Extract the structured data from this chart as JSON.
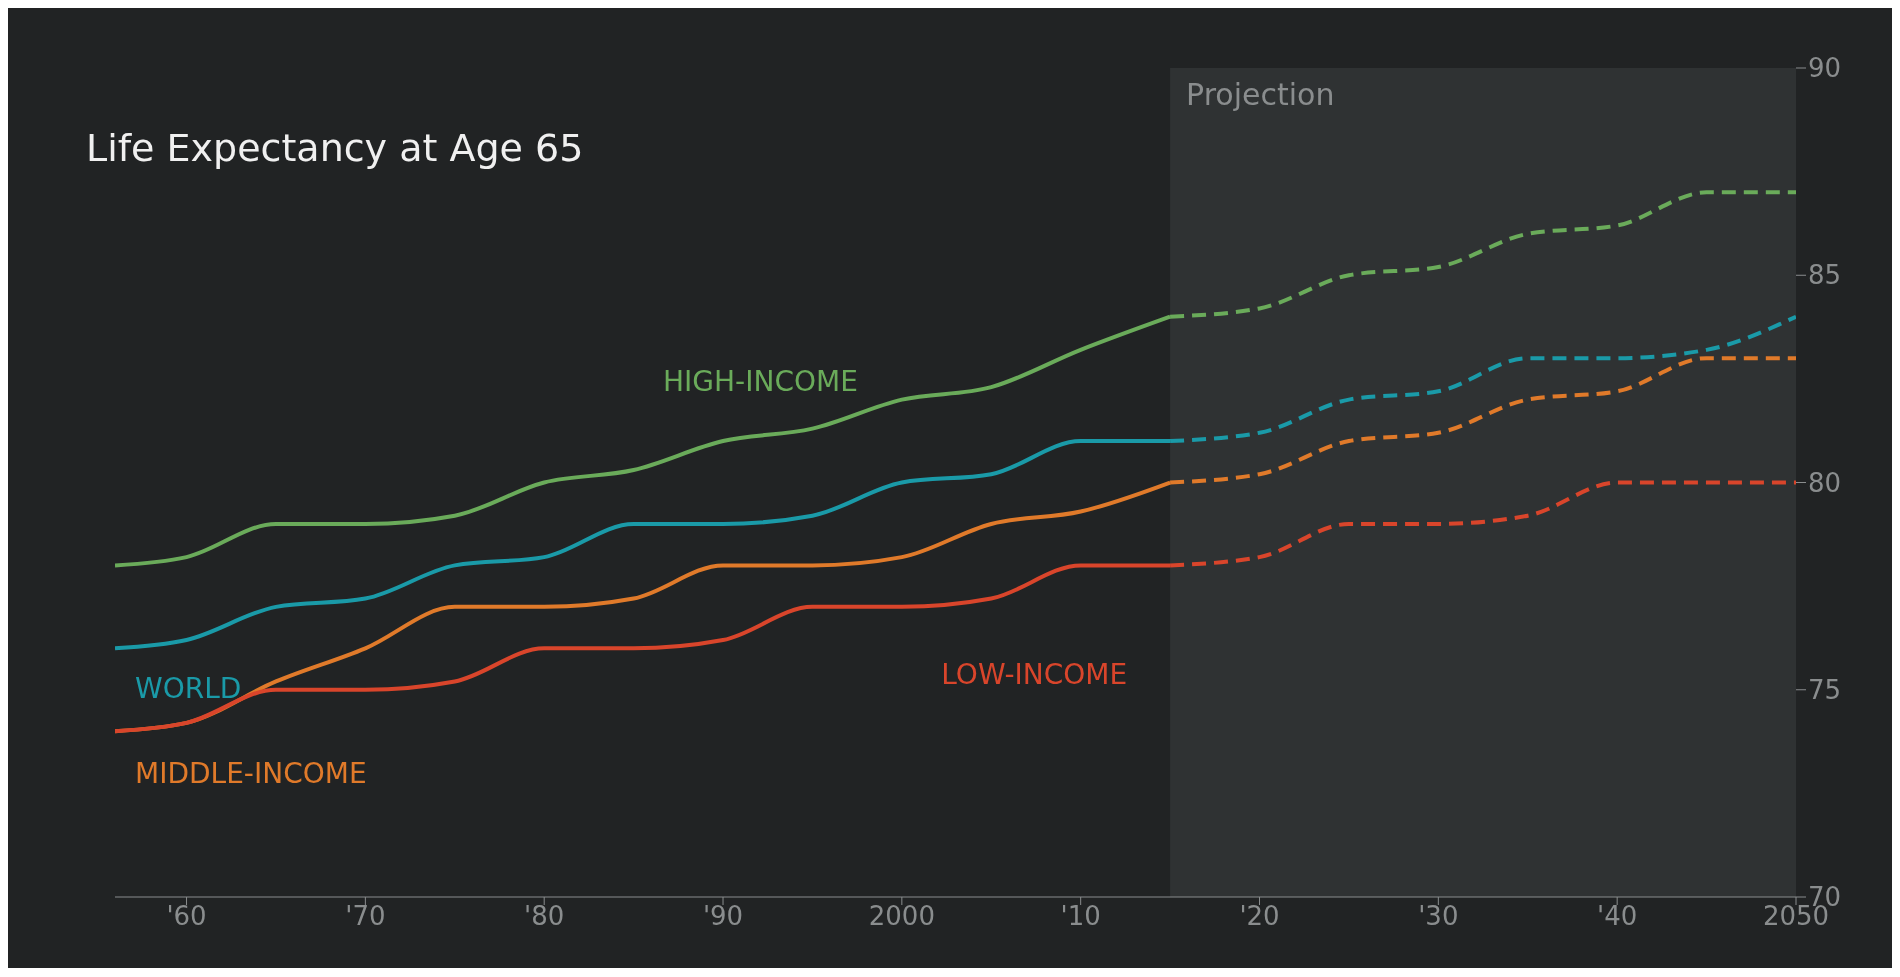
{
  "chart_data": {
    "type": "line",
    "title": "Life Expectancy at Age 65",
    "xlim": [
      1956,
      2050
    ],
    "xticks": [
      {
        "value": 1960,
        "label": "'60"
      },
      {
        "value": 1970,
        "label": "'70"
      },
      {
        "value": 1980,
        "label": "'80"
      },
      {
        "value": 1990,
        "label": "'90"
      },
      2000,
      {
        "value": 2010,
        "label": "'10"
      },
      {
        "value": 2020,
        "label": "'20"
      },
      {
        "value": 2030,
        "label": "'30"
      },
      {
        "value": 2040,
        "label": "'40"
      },
      2050
    ],
    "ylim": [
      70,
      90
    ],
    "yticks": [
      70,
      75,
      80,
      85,
      90
    ],
    "grid": false,
    "legend": false,
    "marker": "none",
    "bands": [
      {
        "axis": "x",
        "from": 2015,
        "to": 2050,
        "label": "Projection",
        "color": "#2f3233"
      }
    ],
    "series": [
      {
        "name": "HIGH-INCOME",
        "color": "#6aab5a",
        "line_style": "solid",
        "x": [
          1956,
          1960,
          1965,
          1970,
          1975,
          1980,
          1985,
          1990,
          1995,
          2000,
          2005,
          2010,
          2015
        ],
        "values": [
          78,
          78.2,
          79,
          79,
          79.2,
          80,
          80.3,
          81,
          81.3,
          82,
          82.3,
          83.2,
          84
        ]
      },
      {
        "color": "#6aab5a",
        "line_style": "dashed",
        "x": [
          2015,
          2020,
          2025,
          2030,
          2035,
          2040,
          2045,
          2050
        ],
        "values": [
          84,
          84.2,
          85,
          85.2,
          86,
          86.2,
          87,
          87
        ]
      },
      {
        "name": "WORLD",
        "color": "#1a9aa8",
        "line_style": "solid",
        "x": [
          1956,
          1960,
          1965,
          1970,
          1975,
          1980,
          1985,
          1990,
          1995,
          2000,
          2005,
          2010,
          2015
        ],
        "values": [
          76,
          76.2,
          77,
          77.2,
          78,
          78.2,
          79,
          79,
          79.2,
          80,
          80.2,
          81,
          81
        ]
      },
      {
        "color": "#1a9aa8",
        "line_style": "dashed",
        "x": [
          2015,
          2020,
          2025,
          2030,
          2035,
          2040,
          2045,
          2050
        ],
        "values": [
          81,
          81.2,
          82,
          82.2,
          83,
          83,
          83.2,
          84
        ]
      },
      {
        "name": "MIDDLE-INCOME",
        "color": "#e07a2a",
        "line_style": "solid",
        "x": [
          1956,
          1960,
          1965,
          1970,
          1975,
          1980,
          1985,
          1990,
          1995,
          2000,
          2005,
          2010,
          2015
        ],
        "values": [
          74,
          74.2,
          75.2,
          76,
          77,
          77,
          77.2,
          78,
          78,
          78.2,
          79,
          79.3,
          80
        ]
      },
      {
        "color": "#e07a2a",
        "line_style": "dashed",
        "x": [
          2015,
          2020,
          2025,
          2030,
          2035,
          2040,
          2045,
          2050
        ],
        "values": [
          80,
          80.2,
          81,
          81.2,
          82,
          82.2,
          83,
          83
        ]
      },
      {
        "name": "LOW-INCOME",
        "color": "#d9452b",
        "line_style": "solid",
        "x": [
          1956,
          1960,
          1965,
          1970,
          1975,
          1980,
          1985,
          1990,
          1995,
          2000,
          2005,
          2010,
          2015
        ],
        "values": [
          74,
          74.2,
          75,
          75,
          75.2,
          76,
          76,
          76.2,
          77,
          77,
          77.2,
          78,
          78
        ]
      },
      {
        "color": "#d9452b",
        "line_style": "dashed",
        "x": [
          2015,
          2020,
          2025,
          2030,
          2035,
          2040,
          2045,
          2050
        ],
        "values": [
          78,
          78.2,
          79,
          79,
          79.2,
          80,
          80,
          80
        ]
      }
    ]
  }
}
